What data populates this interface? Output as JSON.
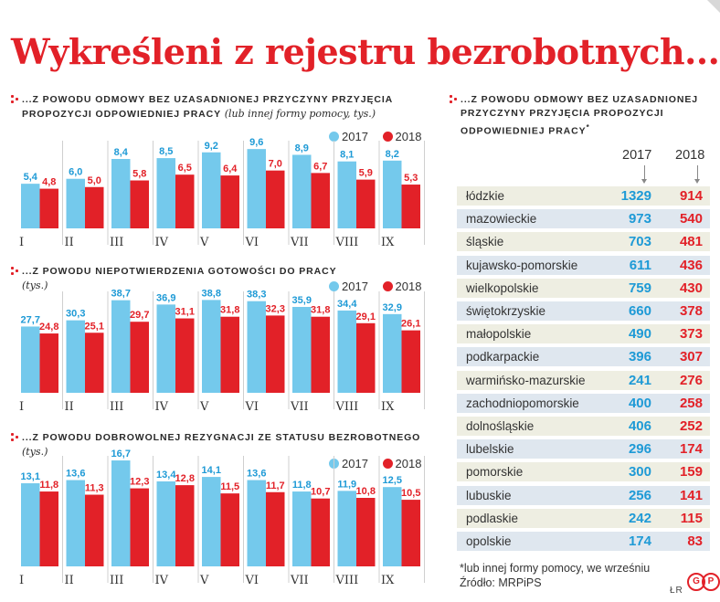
{
  "title": "Wykreśleni z rejestru bezrobotnych...",
  "colors": {
    "c2017": "#74c9ec",
    "c2018": "#e22128",
    "value2017": "#1e9ad6",
    "rowA": "#eeeee2",
    "rowB": "#dfe7ef"
  },
  "legend": {
    "y2017": "2017",
    "y2018": "2018"
  },
  "charts": {
    "c1": {
      "head": "...Z POWODU ODMOWY BEZ UZASADNIONEJ PRZYCZYNY PRZYJĘCIA",
      "head2": "PROPOZYCJI ODPOWIEDNIEJ PRACY",
      "sub": "(lub innej formy pomocy, tys.)"
    },
    "c2": {
      "head": "...Z POWODU NIEPOTWIERDZENIA GOTOWOŚCI DO PRACY",
      "sub": "(tys.)"
    },
    "c3": {
      "head": "...Z POWODU DOBROWOLNEJ REZYGNACJI ZE STATUSU BEZROBOTNEGO",
      "sub": "(tys.)"
    }
  },
  "chart_data": [
    {
      "type": "bar",
      "categories": [
        "I",
        "II",
        "III",
        "IV",
        "V",
        "VI",
        "VII",
        "VIII",
        "IX"
      ],
      "series": [
        {
          "name": "2017",
          "values": [
            5.4,
            6.0,
            8.4,
            8.5,
            9.2,
            9.6,
            8.9,
            8.1,
            8.2
          ]
        },
        {
          "name": "2018",
          "values": [
            4.8,
            5.0,
            5.8,
            6.5,
            6.4,
            7.0,
            6.7,
            5.9,
            5.3
          ]
        }
      ],
      "ylim": [
        0,
        10.5
      ]
    },
    {
      "type": "bar",
      "categories": [
        "I",
        "II",
        "III",
        "IV",
        "V",
        "VI",
        "VII",
        "VIII",
        "IX"
      ],
      "series": [
        {
          "name": "2017",
          "values": [
            27.7,
            30.3,
            38.7,
            36.9,
            38.8,
            38.3,
            35.9,
            34.4,
            32.9
          ]
        },
        {
          "name": "2018",
          "values": [
            24.8,
            25.1,
            29.7,
            31.1,
            31.8,
            32.3,
            31.8,
            29.1,
            26.1
          ]
        }
      ],
      "ylim": [
        0,
        42
      ]
    },
    {
      "type": "bar",
      "categories": [
        "I",
        "II",
        "III",
        "IV",
        "V",
        "VI",
        "VII",
        "VIII",
        "IX"
      ],
      "series": [
        {
          "name": "2017",
          "values": [
            13.1,
            13.6,
            16.7,
            13.4,
            14.1,
            13.6,
            11.8,
            11.9,
            12.5
          ]
        },
        {
          "name": "2018",
          "values": [
            11.8,
            11.3,
            12.3,
            12.8,
            11.5,
            11.7,
            10.7,
            10.8,
            10.5
          ]
        }
      ],
      "ylim": [
        0,
        18
      ]
    },
    {
      "type": "table",
      "title": "...Z POWODU ODMOWY BEZ UZASADNIONEJ PRZYCZYNY PRZYJĘCIA PROPOZYCJI ODPOWIEDNIEJ PRACY*",
      "columns": [
        "2017",
        "2018"
      ],
      "rows": [
        {
          "region": "łódzkie",
          "v2017": 1329,
          "v2018": 914
        },
        {
          "region": "mazowieckie",
          "v2017": 973,
          "v2018": 540
        },
        {
          "region": "śląskie",
          "v2017": 703,
          "v2018": 481
        },
        {
          "region": "kujawsko-pomorskie",
          "v2017": 611,
          "v2018": 436
        },
        {
          "region": "wielkopolskie",
          "v2017": 759,
          "v2018": 430
        },
        {
          "region": "świętokrzyskie",
          "v2017": 660,
          "v2018": 378
        },
        {
          "region": "małopolskie",
          "v2017": 490,
          "v2018": 373
        },
        {
          "region": "podkarpackie",
          "v2017": 396,
          "v2018": 307
        },
        {
          "region": "warmińsko-mazurskie",
          "v2017": 241,
          "v2018": 276
        },
        {
          "region": "zachodniopomorskie",
          "v2017": 400,
          "v2018": 258
        },
        {
          "region": "dolnośląskie",
          "v2017": 406,
          "v2018": 252
        },
        {
          "region": "lubelskie",
          "v2017": 296,
          "v2018": 174
        },
        {
          "region": "pomorskie",
          "v2017": 300,
          "v2018": 159
        },
        {
          "region": "lubuskie",
          "v2017": 256,
          "v2018": 141
        },
        {
          "region": "podlaskie",
          "v2017": 242,
          "v2018": 115
        },
        {
          "region": "opolskie",
          "v2017": 174,
          "v2018": 83
        }
      ]
    }
  ],
  "table": {
    "head": "...Z POWODU ODMOWY BEZ UZASADNIONEJ",
    "head2": "PRZYCZYNY PRZYJĘCIA PROPOZYCJI",
    "head3": "ODPOWIEDNIEJ PRACY",
    "star": "*",
    "col2017": "2017",
    "col2018": "2018"
  },
  "footnote": "*lub innej formy pomocy, we wrześniu",
  "source": "Źródło: MRPiPS",
  "author": "ŁR",
  "logo": "GP"
}
